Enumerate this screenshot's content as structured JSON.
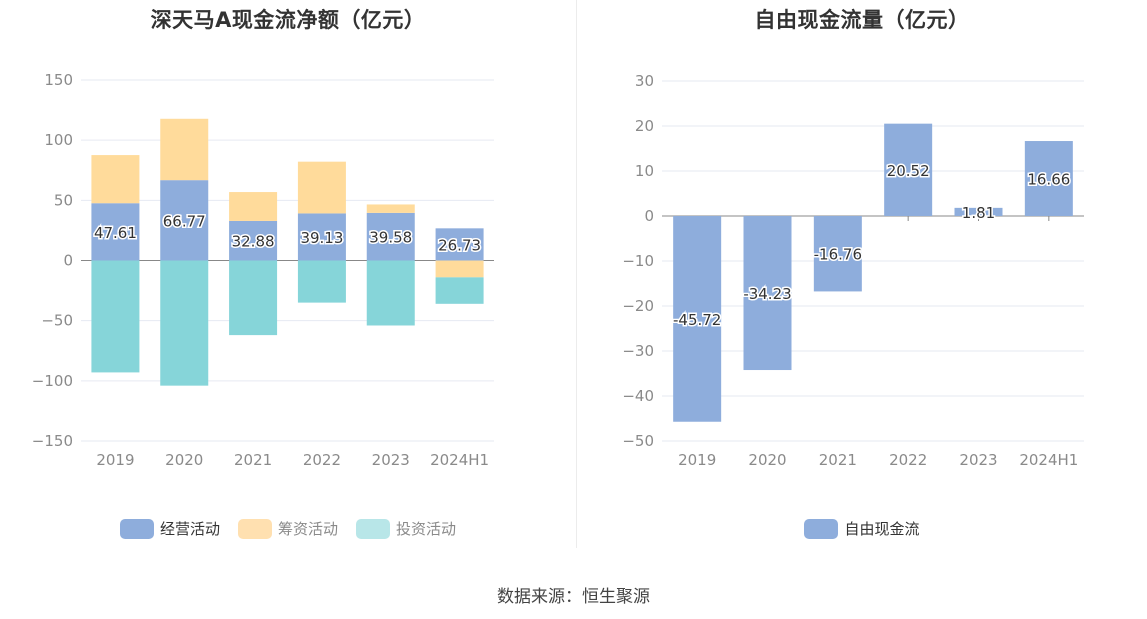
{
  "source": "数据来源：恒生聚源",
  "chart_data": [
    {
      "type": "bar",
      "stacked": true,
      "title": "深天马A现金流净额（亿元）",
      "categories": [
        "2019",
        "2020",
        "2021",
        "2022",
        "2023",
        "2024H1"
      ],
      "ylim": [
        -150,
        150
      ],
      "yticks": [
        150,
        100,
        50,
        0,
        -50,
        -100,
        -150
      ],
      "series": [
        {
          "name": "经营活动",
          "color": "#8eaddc",
          "values": [
            47.61,
            66.77,
            32.88,
            39.13,
            39.58,
            26.73
          ],
          "labels": [
            "47.61",
            "66.77",
            "32.88",
            "39.13",
            "39.58",
            "26.73"
          ]
        },
        {
          "name": "筹资活动",
          "color": "#ffdb9b",
          "values": [
            40,
            51,
            24,
            43,
            7,
            -14
          ]
        },
        {
          "name": "投资活动",
          "color": "#86d5d9",
          "values": [
            -93,
            -104,
            -62,
            -35,
            -54,
            -22
          ]
        }
      ],
      "legend_colors": [
        "#8eaddc",
        "#ffe0b0",
        "#b8e6e8"
      ],
      "legend": "bottom"
    },
    {
      "type": "bar",
      "title": "自由现金流量（亿元）",
      "categories": [
        "2019",
        "2020",
        "2021",
        "2022",
        "2023",
        "2024H1"
      ],
      "ylim": [
        -50,
        30
      ],
      "yticks": [
        30,
        20,
        10,
        0,
        -10,
        -20,
        -30,
        -40,
        -50
      ],
      "series": [
        {
          "name": "自由现金流",
          "color": "#8eaddc",
          "values": [
            -45.72,
            -34.23,
            -16.76,
            20.52,
            1.81,
            16.66
          ],
          "labels": [
            "-45.72",
            "-34.23",
            "-16.76",
            "20.52",
            "1.81",
            "16.66"
          ]
        }
      ],
      "legend": "bottom"
    }
  ]
}
